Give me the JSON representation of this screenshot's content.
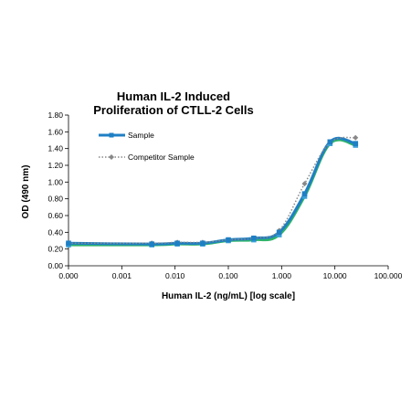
{
  "chart_data": {
    "type": "line",
    "title_lines": [
      "Human IL-2 Induced",
      "Proliferation of CTLL-2 Cells"
    ],
    "xlabel": "Human IL-2 (ng/mL) [log scale]",
    "ylabel": "OD (490 nm)",
    "x_scale": "log",
    "x_ticks": [
      {
        "value": 0.0001,
        "label": "0.000"
      },
      {
        "value": 0.001,
        "label": "0.001"
      },
      {
        "value": 0.01,
        "label": "0.010"
      },
      {
        "value": 0.1,
        "label": "0.100"
      },
      {
        "value": 1,
        "label": "1.000"
      },
      {
        "value": 10,
        "label": "10.000"
      },
      {
        "value": 100,
        "label": "100.000"
      }
    ],
    "xlim": [
      0.0001,
      100
    ],
    "ylim": [
      0,
      1.8
    ],
    "y_ticks": [
      {
        "value": 0,
        "label": "0.00"
      },
      {
        "value": 0.2,
        "label": "0.20"
      },
      {
        "value": 0.4,
        "label": "0.40"
      },
      {
        "value": 0.6,
        "label": "0.60"
      },
      {
        "value": 0.8,
        "label": "0.80"
      },
      {
        "value": 1.0,
        "label": "1.00"
      },
      {
        "value": 1.2,
        "label": "1.20"
      },
      {
        "value": 1.4,
        "label": "1.40"
      },
      {
        "value": 1.6,
        "label": "1.60"
      },
      {
        "value": 1.8,
        "label": "1.80"
      }
    ],
    "grid": false,
    "legend_position": "top-left",
    "series": [
      {
        "name": "Sample",
        "color": "#1f7fc4",
        "style": "solid-thick",
        "marker": "square",
        "x": [
          0.0001,
          0.00366,
          0.011,
          0.033,
          0.1,
          0.3,
          0.9,
          2.7,
          8.1,
          24.4
        ],
        "y": [
          0.25,
          0.25,
          0.26,
          0.26,
          0.3,
          0.31,
          0.37,
          0.83,
          1.46,
          1.44
        ],
        "y_alt": [
          0.27,
          0.26,
          0.27,
          0.27,
          0.31,
          0.33,
          0.4,
          0.86,
          1.48,
          1.46
        ]
      },
      {
        "name": "Competitor Sample",
        "color": "#888888",
        "style": "dotted",
        "marker": "diamond",
        "x": [
          0.0001,
          0.00366,
          0.011,
          0.033,
          0.1,
          0.3,
          0.9,
          2.7,
          8.1,
          24.4
        ],
        "y": [
          0.27,
          0.27,
          0.28,
          0.28,
          0.31,
          0.33,
          0.42,
          0.98,
          1.47,
          1.53
        ]
      }
    ]
  }
}
